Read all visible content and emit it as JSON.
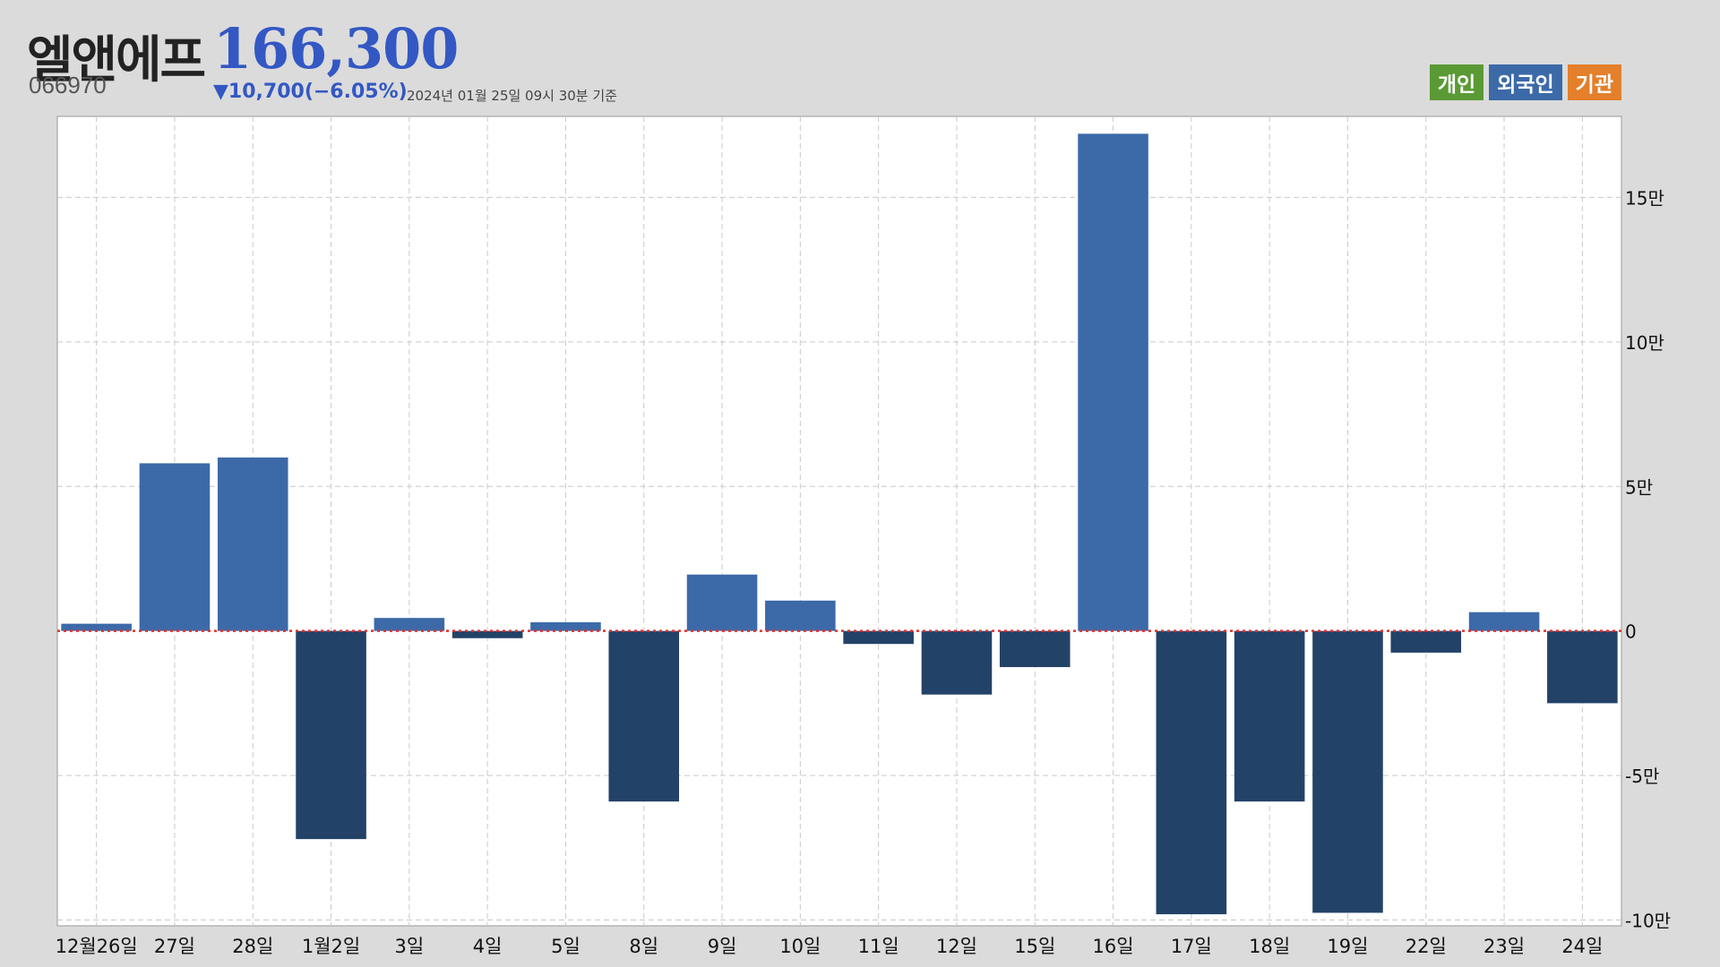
{
  "header": {
    "name": "엘앤에프",
    "code": "066970",
    "price": "166,300",
    "change": "▼10,700(−6.05%)",
    "timestamp": "2024년 01월 25일 09시 30분 기준"
  },
  "legend": [
    {
      "label": "개인",
      "color": "#5a9a34"
    },
    {
      "label": "외국인",
      "color": "#3c6aa8"
    },
    {
      "label": "기관",
      "color": "#e47f2b"
    }
  ],
  "colors": {
    "positive": "#3c6aa8",
    "negative": "#234268",
    "zero_line": "#e03030",
    "grid": "#c9c9c9",
    "plot_bg": "#ffffff"
  },
  "chart_data": {
    "type": "bar",
    "series_name": "외국인",
    "categories": [
      "12월26일",
      "27일",
      "28일",
      "1월2일",
      "3일",
      "4일",
      "5일",
      "8일",
      "9일",
      "10일",
      "11일",
      "12일",
      "15일",
      "16일",
      "17일",
      "18일",
      "19일",
      "22일",
      "23일",
      "24일"
    ],
    "values": [
      2500,
      58000,
      60000,
      -72000,
      4500,
      -2500,
      3000,
      -59000,
      19500,
      10500,
      -4500,
      -22000,
      -12500,
      172000,
      -98000,
      -59000,
      -97500,
      -7500,
      6500,
      -25000
    ],
    "y_ticks": [
      {
        "value": 150000,
        "label": "15만"
      },
      {
        "value": 100000,
        "label": "10만"
      },
      {
        "value": 50000,
        "label": "5만"
      },
      {
        "value": 0,
        "label": "0"
      },
      {
        "value": -50000,
        "label": "-5만"
      },
      {
        "value": -100000,
        "label": "-10만"
      }
    ],
    "ylim": [
      -102000,
      178000
    ],
    "y_axis_position": "right",
    "grid": true
  }
}
